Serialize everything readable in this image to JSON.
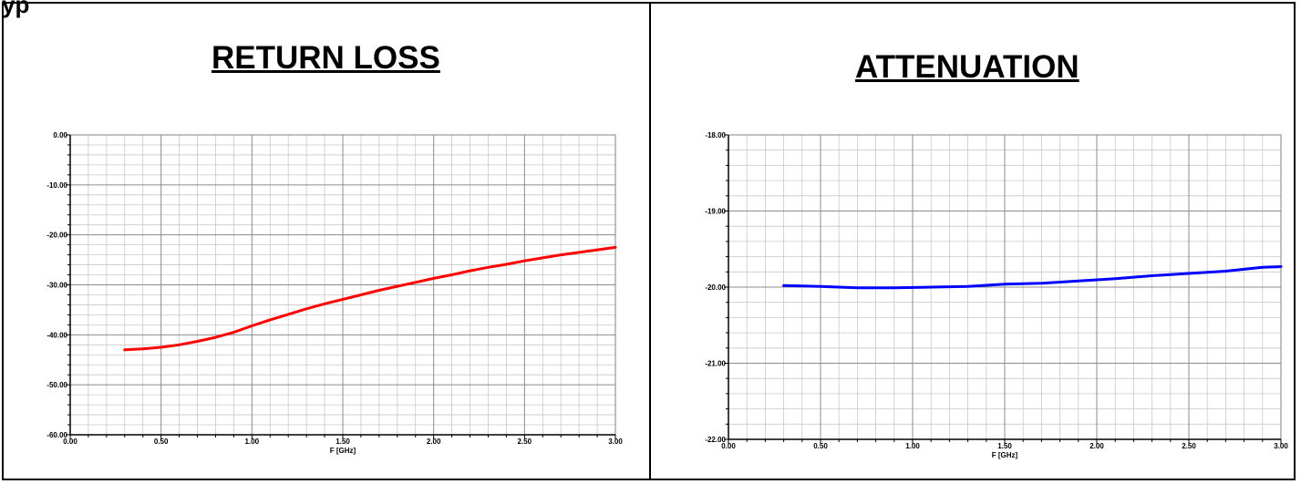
{
  "header_fragment": "yp",
  "panels": [
    {
      "title": "RETURN LOSS",
      "chart_data": {
        "type": "line",
        "xlabel": "F [GHz]",
        "ylabel": "",
        "xlim": [
          0.0,
          3.0
        ],
        "ylim": [
          -60.0,
          0.0
        ],
        "x_ticks": [
          "0.00",
          "0.50",
          "1.00",
          "1.50",
          "2.00",
          "2.50",
          "3.00"
        ],
        "y_ticks": [
          "0.00",
          "-10.00",
          "-20.00",
          "-30.00",
          "-40.00",
          "-50.00",
          "-60.00"
        ],
        "grid": true,
        "color": "#ff0000",
        "series": [
          {
            "x": [
              0.3,
              0.4,
              0.5,
              0.6,
              0.7,
              0.8,
              0.9,
              1.0,
              1.1,
              1.2,
              1.3,
              1.4,
              1.5,
              1.6,
              1.7,
              1.8,
              1.9,
              2.0,
              2.1,
              2.2,
              2.3,
              2.4,
              2.5,
              2.6,
              2.7,
              2.8,
              2.9,
              3.0
            ],
            "y": [
              -43.0,
              -42.8,
              -42.5,
              -42.0,
              -41.3,
              -40.5,
              -39.5,
              -38.2,
              -37.0,
              -35.9,
              -34.8,
              -33.8,
              -32.9,
              -32.0,
              -31.1,
              -30.3,
              -29.5,
              -28.7,
              -28.0,
              -27.2,
              -26.5,
              -25.9,
              -25.2,
              -24.6,
              -24.0,
              -23.5,
              -23.0,
              -22.5
            ]
          }
        ]
      }
    },
    {
      "title": "ATTENUATION",
      "chart_data": {
        "type": "line",
        "xlabel": "F [GHz]",
        "ylabel": "",
        "xlim": [
          0.0,
          3.0
        ],
        "ylim": [
          -22.0,
          -18.0
        ],
        "x_ticks": [
          "0.00",
          "0.50",
          "1.00",
          "1.50",
          "2.00",
          "2.50",
          "3.00"
        ],
        "y_ticks": [
          "-18.00",
          "-19.00",
          "-20.00",
          "-21.00",
          "-22.00"
        ],
        "grid": true,
        "color": "#0000ff",
        "series": [
          {
            "x": [
              0.3,
              0.5,
              0.7,
              0.9,
              1.1,
              1.3,
              1.5,
              1.7,
              1.9,
              2.1,
              2.3,
              2.5,
              2.7,
              2.9,
              3.0
            ],
            "y": [
              -19.98,
              -19.99,
              -20.01,
              -20.01,
              -20.0,
              -19.99,
              -19.96,
              -19.95,
              -19.92,
              -19.89,
              -19.85,
              -19.82,
              -19.79,
              -19.74,
              -19.73
            ]
          }
        ]
      }
    }
  ]
}
